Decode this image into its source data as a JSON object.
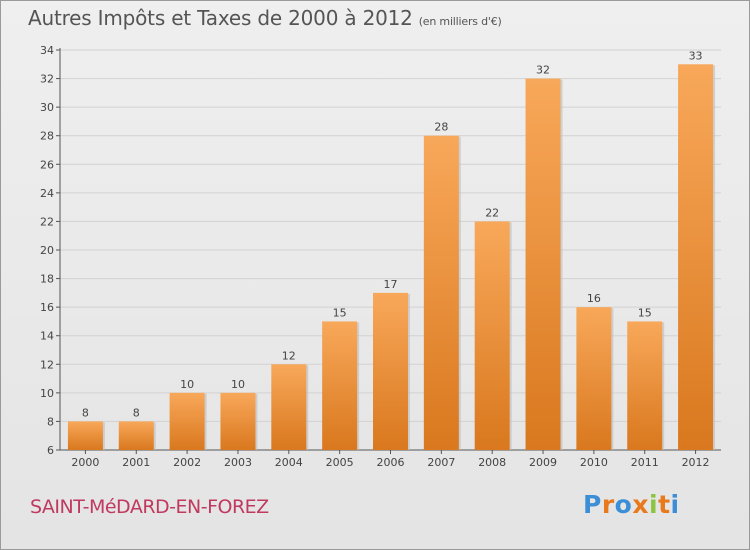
{
  "header": {
    "title": "Autres Impôts et Taxes de 2000 à 2012",
    "subtitle": "(en milliers d'€)"
  },
  "footer": {
    "commune": "SAINT-MéDARD-EN-FOREZ",
    "logo": {
      "letters": [
        "P",
        "r",
        "o",
        "x",
        "i",
        "t",
        "i"
      ],
      "colors": [
        "#3c8fd6",
        "#e8791c",
        "#3c8fd6",
        "#e8791c",
        "#8cc63f",
        "#e8791c",
        "#3c8fd6"
      ]
    }
  },
  "colors": {
    "bar_light": "#f8a85a",
    "bar_dark": "#d9781e",
    "axis": "#555555",
    "grid": "#d2d2d2",
    "commune_text": "#c0395f"
  },
  "chart_data": {
    "type": "bar",
    "title": "Autres Impôts et Taxes de 2000 à 2012",
    "subtitle": "(en milliers d'€)",
    "categories": [
      "2000",
      "2001",
      "2002",
      "2003",
      "2004",
      "2005",
      "2006",
      "2007",
      "2008",
      "2009",
      "2010",
      "2011",
      "2012"
    ],
    "values": [
      8,
      8,
      10,
      10,
      12,
      15,
      17,
      28,
      22,
      32,
      16,
      15,
      33
    ],
    "ylim": [
      6,
      34
    ],
    "yticks": [
      6,
      8,
      10,
      12,
      14,
      16,
      18,
      20,
      22,
      24,
      26,
      28,
      30,
      32,
      34
    ],
    "grid": true,
    "data_labels": true
  }
}
